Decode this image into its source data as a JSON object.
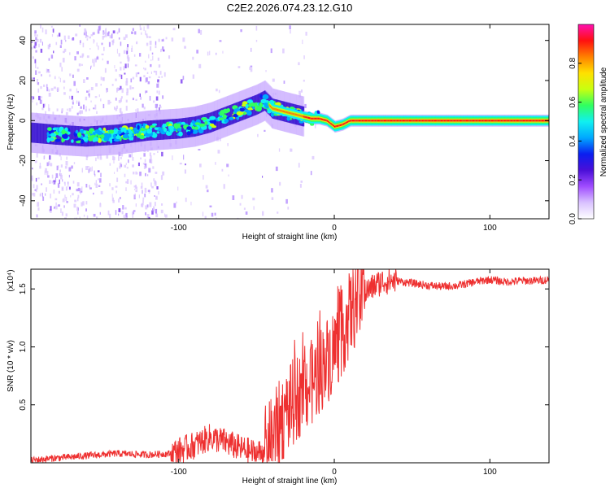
{
  "title": "C2E2.2026.074.23.12.G10",
  "chart_data": [
    {
      "type": "heatmap",
      "xlabel": "Height of straight line (km)",
      "ylabel": "Frequency (Hz)",
      "xlim": [
        -195,
        138
      ],
      "ylim": [
        -49,
        48
      ],
      "x_ticks": [
        -100,
        0,
        100
      ],
      "x_tick_labels": [
        "-100",
        "0",
        "100"
      ],
      "y_ticks": [
        -40,
        -20,
        0,
        20,
        40
      ],
      "y_tick_labels": [
        "-40",
        "-20",
        "0",
        "20",
        "40"
      ],
      "colorbar": {
        "label": "Normalized spectral amplitude",
        "range": [
          0,
          1
        ],
        "ticks": [
          0.0,
          0.2,
          0.4,
          0.6,
          0.8
        ],
        "tick_labels": [
          "0.0",
          "0.2",
          "0.4",
          "0.6",
          "0.8"
        ],
        "colors": [
          "#ffffff",
          "#d9c2ff",
          "#a04cff",
          "#4a0fd8",
          "#0a1ef0",
          "#00a8ff",
          "#10f0f0",
          "#30ff60",
          "#c8ff10",
          "#ffe000",
          "#ff8000",
          "#ff1010",
          "#ff10b0"
        ]
      },
      "ridge": {
        "x": [
          -195,
          -180,
          -160,
          -140,
          -120,
          -100,
          -90,
          -80,
          -70,
          -60,
          -50,
          -45,
          -40,
          -35,
          -30,
          -25,
          -20,
          -15,
          -10,
          -5,
          0,
          5,
          10,
          20,
          40,
          60,
          80,
          100,
          120,
          138
        ],
        "frequency": [
          -6,
          -7,
          -8,
          -7,
          -5,
          -4,
          -3,
          -1,
          2,
          5,
          8,
          10,
          6,
          5,
          4,
          3,
          2,
          1,
          1,
          0,
          -3,
          -2,
          0,
          0,
          0,
          0,
          0,
          0,
          0,
          0
        ]
      }
    },
    {
      "type": "line",
      "xlabel": "Height of straight line (km)",
      "ylabel": "SNR (10 * v/v)",
      "y_multiplier": "(x10⁴)",
      "xlim": [
        -195,
        138
      ],
      "ylim": [
        0,
        1.67
      ],
      "x_ticks": [
        -100,
        0,
        100
      ],
      "x_tick_labels": [
        "-100",
        "0",
        "100"
      ],
      "y_ticks": [
        0.5,
        1.0,
        1.5
      ],
      "y_tick_labels": [
        "0.5",
        "1.0",
        "1.5"
      ],
      "series": [
        {
          "name": "SNR",
          "color": "#ee3030",
          "x": [
            -195,
            -180,
            -160,
            -140,
            -120,
            -105,
            -90,
            -80,
            -70,
            -60,
            -50,
            -45,
            -40,
            -35,
            -30,
            -25,
            -20,
            -15,
            -10,
            -5,
            0,
            5,
            10,
            15,
            20,
            25,
            30,
            35,
            40,
            50,
            60,
            70,
            80,
            90,
            100,
            110,
            120,
            130,
            138
          ],
          "y": [
            0.02,
            0.04,
            0.06,
            0.08,
            0.07,
            0.08,
            0.15,
            0.22,
            0.18,
            0.12,
            0.08,
            0.1,
            0.2,
            0.35,
            0.45,
            0.55,
            0.62,
            0.68,
            0.78,
            0.88,
            0.98,
            1.12,
            1.28,
            1.4,
            1.47,
            1.52,
            1.56,
            1.57,
            1.57,
            1.55,
            1.53,
            1.52,
            1.53,
            1.56,
            1.58,
            1.56,
            1.57,
            1.57,
            1.58
          ]
        }
      ]
    }
  ]
}
